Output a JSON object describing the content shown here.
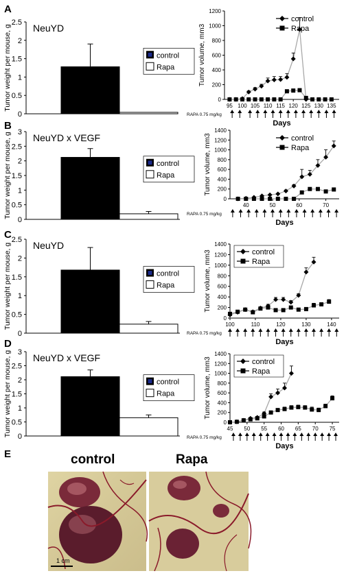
{
  "panels": [
    {
      "letter": "A",
      "bar": {
        "title": "NeuYD",
        "ylabel": "Tumor weight per mouse, g",
        "yticks": [
          "0",
          "0.5",
          "1",
          "1.5",
          "2",
          "2.5"
        ],
        "ylim": [
          0,
          2.5
        ]
      },
      "line": {
        "ylabel": "Tumor volume, mm3",
        "yticks": [
          "0",
          "200",
          "400",
          "600",
          "800",
          "1000",
          "1200"
        ],
        "ylim": [
          0,
          1200
        ],
        "xticks": [
          "95",
          "100",
          "105",
          "110",
          "115",
          "120",
          "125",
          "130",
          "135"
        ],
        "xlim": [
          93,
          138
        ],
        "xlabel": "Days",
        "dose_label": "RAPA 0.75 mg/kg",
        "legend_pos": "top-right"
      }
    },
    {
      "letter": "B",
      "bar": {
        "title": "NeuYD x VEGF",
        "ylabel": "Tumor weight per mouse, g",
        "yticks": [
          "0",
          "0.5",
          "1",
          "1.5",
          "2",
          "2.5",
          "3"
        ],
        "ylim": [
          0,
          3
        ]
      },
      "line": {
        "ylabel": "Tumor volume, mm3",
        "yticks": [
          "0",
          "200",
          "400",
          "600",
          "800",
          "1000",
          "1200",
          "1400"
        ],
        "ylim": [
          0,
          1400
        ],
        "xticks": [
          "40",
          "50",
          "60",
          "70"
        ],
        "xlim": [
          34,
          75
        ],
        "xlabel": "Days",
        "dose_label": "RAPA 0.75 mg/kg",
        "legend_pos": "top-right"
      }
    },
    {
      "letter": "C",
      "bar": {
        "title": "NeuYD",
        "ylabel": "Tumor weight per mouse, g",
        "yticks": [
          "0",
          "0.5",
          "1",
          "1.5",
          "2",
          "2.5"
        ],
        "ylim": [
          0,
          2.5
        ]
      },
      "line": {
        "ylabel": "Tumor volume, mm3",
        "yticks": [
          "0",
          "200",
          "400",
          "600",
          "800",
          "1000",
          "1200",
          "1400"
        ],
        "ylim": [
          0,
          1400
        ],
        "xticks": [
          "100",
          "110",
          "120",
          "130",
          "140"
        ],
        "xlim": [
          100,
          143
        ],
        "xlabel": "Days",
        "dose_label": "RAPA 0.75 mg/kg",
        "legend_pos": "top-left"
      }
    },
    {
      "letter": "D",
      "bar": {
        "title": "NeuYD x VEGF",
        "ylabel": "Tumor weight per mouse, g",
        "yticks": [
          "0",
          "0.5",
          "1",
          "1.5",
          "2",
          "2.5",
          "3"
        ],
        "ylim": [
          0,
          3
        ]
      },
      "line": {
        "ylabel": "Tumor volume, mm3",
        "yticks": [
          "0",
          "200",
          "400",
          "600",
          "800",
          "1000",
          "1200",
          "1400"
        ],
        "ylim": [
          0,
          1400
        ],
        "xticks": [
          "45",
          "50",
          "55",
          "60",
          "65",
          "70",
          "75"
        ],
        "xlim": [
          45,
          77
        ],
        "xlabel": "Days",
        "dose_label": "RAPA 0.75 mg/kg",
        "legend_pos": "top-left"
      }
    }
  ],
  "legend": {
    "control": "control",
    "rapa": "Rapa"
  },
  "photos": {
    "letter": "E",
    "left_label": "control",
    "right_label": "Rapa",
    "scale_label": "1 cm"
  },
  "colors": {
    "control_bar": "#000000",
    "rapa_bar": "#ffffff",
    "control_legend_swatch": "#1a2a8c",
    "line": "#a8a8a8",
    "marker": "#000000"
  },
  "chart_data": [
    {
      "type": "bar",
      "panel": "A",
      "categories": [
        "control",
        "Rapa"
      ],
      "values": [
        1.28,
        0.04
      ],
      "errors": [
        0.62,
        0.0
      ],
      "ylim": [
        0,
        2.5
      ]
    },
    {
      "type": "line",
      "panel": "A",
      "xlim": [
        93,
        138
      ],
      "ylim": [
        0,
        1200
      ],
      "dose_days": [
        96,
        99,
        103,
        106,
        109,
        112,
        115,
        118,
        121,
        124,
        127,
        130,
        133,
        136
      ],
      "series": [
        {
          "name": "control",
          "marker": "diamond",
          "x": [
            95,
            97.5,
            100,
            102.5,
            105,
            107.5,
            110,
            112.5,
            115,
            117.5,
            120,
            122.5,
            125
          ],
          "y": [
            0,
            0,
            10,
            100,
            140,
            180,
            250,
            265,
            270,
            300,
            550,
            950,
            0
          ],
          "errors": [
            0,
            0,
            0,
            15,
            20,
            25,
            40,
            45,
            40,
            50,
            80,
            160,
            0
          ]
        },
        {
          "name": "Rapa",
          "marker": "square",
          "x": [
            95,
            97.5,
            100,
            102.5,
            105,
            107.5,
            110,
            112.5,
            115,
            117.5,
            120,
            122.5,
            125,
            127.5,
            130,
            132.5,
            135
          ],
          "y": [
            0,
            0,
            0,
            0,
            0,
            0,
            0,
            0,
            0,
            110,
            120,
            125,
            20,
            0,
            0,
            0,
            0
          ],
          "errors": [
            0,
            0,
            0,
            0,
            0,
            0,
            0,
            0,
            0,
            0,
            0,
            0,
            0,
            0,
            0,
            0,
            0
          ]
        }
      ]
    },
    {
      "type": "bar",
      "panel": "B",
      "categories": [
        "control",
        "Rapa"
      ],
      "values": [
        2.12,
        0.19
      ],
      "errors": [
        0.3,
        0.08
      ],
      "ylim": [
        0,
        3
      ]
    },
    {
      "type": "line",
      "panel": "B",
      "xlim": [
        34,
        75
      ],
      "ylim": [
        0,
        1400
      ],
      "dose_days": [
        35,
        38,
        41,
        44,
        47,
        50,
        53,
        56,
        59,
        62,
        65,
        68,
        71,
        74
      ],
      "series": [
        {
          "name": "control",
          "marker": "diamond",
          "x": [
            37,
            40,
            43,
            46,
            49,
            52,
            55,
            58,
            61,
            64,
            67,
            70,
            73
          ],
          "y": [
            0,
            10,
            30,
            60,
            80,
            100,
            160,
            260,
            450,
            500,
            680,
            850,
            1080
          ],
          "errors": [
            0,
            0,
            0,
            0,
            0,
            10,
            20,
            30,
            150,
            80,
            120,
            150,
            100
          ]
        },
        {
          "name": "Rapa",
          "marker": "square",
          "x": [
            37,
            40,
            43,
            46,
            49,
            52,
            55,
            58,
            61,
            64,
            67,
            70,
            73
          ],
          "y": [
            0,
            0,
            0,
            0,
            0,
            0,
            0,
            0,
            130,
            200,
            200,
            150,
            190
          ],
          "errors": [
            0,
            0,
            0,
            0,
            0,
            0,
            0,
            0,
            20,
            0,
            0,
            0,
            0
          ]
        }
      ]
    },
    {
      "type": "bar",
      "panel": "C",
      "categories": [
        "control",
        "Rapa"
      ],
      "values": [
        1.68,
        0.24
      ],
      "errors": [
        0.6,
        0.07
      ],
      "ylim": [
        0,
        2.5
      ]
    },
    {
      "type": "line",
      "panel": "C",
      "xlim": [
        100,
        143
      ],
      "ylim": [
        0,
        1400
      ],
      "dose_days": [
        100,
        103,
        106,
        109,
        112,
        115,
        118,
        121,
        124,
        127,
        130,
        133,
        136,
        139,
        142
      ],
      "series": [
        {
          "name": "control",
          "marker": "diamond",
          "x": [
            100,
            103,
            106,
            109,
            112,
            115,
            118,
            121,
            124,
            127,
            130,
            133
          ],
          "y": [
            60,
            110,
            160,
            120,
            190,
            230,
            350,
            350,
            300,
            430,
            870,
            1060
          ],
          "errors": [
            10,
            10,
            15,
            10,
            20,
            30,
            40,
            40,
            30,
            30,
            80,
            90
          ]
        },
        {
          "name": "Rapa",
          "marker": "square",
          "x": [
            100,
            103,
            106,
            109,
            112,
            115,
            118,
            121,
            124,
            127,
            130,
            133,
            136,
            139
          ],
          "y": [
            80,
            120,
            160,
            110,
            180,
            200,
            150,
            150,
            200,
            160,
            170,
            240,
            260,
            310
          ],
          "errors": [
            10,
            10,
            15,
            10,
            20,
            20,
            15,
            15,
            20,
            20,
            20,
            40,
            30,
            40
          ]
        }
      ]
    },
    {
      "type": "bar",
      "panel": "D",
      "categories": [
        "control",
        "Rapa"
      ],
      "values": [
        2.11,
        0.65
      ],
      "errors": [
        0.24,
        0.1
      ],
      "ylim": [
        0,
        3
      ]
    },
    {
      "type": "line",
      "panel": "D",
      "xlim": [
        45,
        77
      ],
      "ylim": [
        0,
        1400
      ],
      "dose_days": [
        46,
        48,
        50,
        52,
        54,
        56,
        58,
        60,
        62,
        64,
        66,
        68,
        70,
        72,
        74,
        76
      ],
      "series": [
        {
          "name": "control",
          "marker": "diamond",
          "x": [
            45,
            47,
            49,
            51,
            53,
            55,
            57,
            59,
            61,
            63
          ],
          "y": [
            0,
            10,
            40,
            80,
            100,
            180,
            520,
            600,
            700,
            1000
          ],
          "errors": [
            0,
            0,
            10,
            15,
            20,
            30,
            60,
            80,
            100,
            150
          ]
        },
        {
          "name": "Rapa",
          "marker": "square",
          "x": [
            45,
            47,
            49,
            51,
            53,
            55,
            57,
            59,
            61,
            63,
            65,
            67,
            69,
            71,
            73,
            75
          ],
          "y": [
            0,
            10,
            40,
            60,
            80,
            120,
            200,
            250,
            270,
            300,
            310,
            300,
            260,
            250,
            330,
            490
          ],
          "errors": [
            0,
            0,
            10,
            10,
            15,
            20,
            30,
            30,
            40,
            40,
            40,
            40,
            50,
            40,
            40,
            50
          ]
        }
      ]
    }
  ]
}
